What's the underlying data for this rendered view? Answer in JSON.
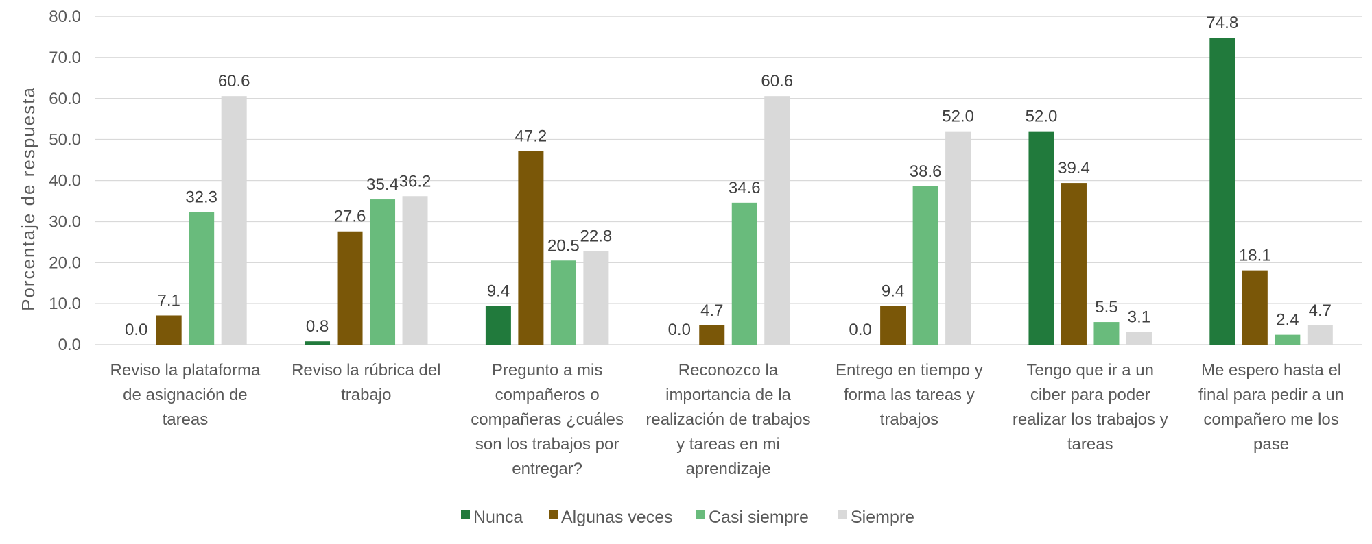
{
  "chart_data": {
    "type": "bar",
    "title": "",
    "xlabel": "",
    "ylabel": "Porcentaje de respuesta",
    "ylim": [
      0,
      80
    ],
    "yticks": [
      "0.0",
      "10.0",
      "20.0",
      "30.0",
      "40.0",
      "50.0",
      "60.0",
      "70.0",
      "80.0"
    ],
    "grid": true,
    "legend_position": "bottom",
    "categories": [
      [
        "Reviso la plataforma",
        "de asignación de",
        "tareas"
      ],
      [
        "Reviso la rúbrica del",
        "trabajo"
      ],
      [
        "Pregunto a mis",
        "compañeros o",
        "compañeras ¿cuáles",
        "son los trabajos por",
        "entregar?"
      ],
      [
        "Reconozco la",
        "importancia de la",
        "realización de trabajos",
        "y tareas en mi",
        "aprendizaje"
      ],
      [
        "Entrego en tiempo y",
        "forma las tareas y",
        "trabajos"
      ],
      [
        "Tengo que ir a un",
        "ciber para poder",
        "realizar los trabajos y",
        "tareas"
      ],
      [
        "Me espero hasta el",
        "final para pedir a un",
        "compañero me los",
        "pase"
      ]
    ],
    "series": [
      {
        "name": "Nunca",
        "color": "#217a3c",
        "values": [
          0.0,
          0.8,
          9.4,
          0.0,
          0.0,
          52.0,
          74.8
        ],
        "labels": [
          "0.0",
          "0.8",
          "9.4",
          "0.0",
          "0.0",
          "52.0",
          "74.8"
        ]
      },
      {
        "name": "Algunas veces",
        "color": "#7a5708",
        "values": [
          7.1,
          27.6,
          47.2,
          4.7,
          9.4,
          39.4,
          18.1
        ],
        "labels": [
          "7.1",
          "27.6",
          "47.2",
          "4.7",
          "9.4",
          "39.4",
          "18.1"
        ]
      },
      {
        "name": "Casi siempre",
        "color": "#69bb7c",
        "values": [
          32.3,
          35.4,
          20.5,
          34.6,
          38.6,
          5.5,
          2.4
        ],
        "labels": [
          "32.3",
          "35.4",
          "20.5",
          "34.6",
          "38.6",
          "5.5",
          "2.4"
        ]
      },
      {
        "name": "Siempre",
        "color": "#d9d9d9",
        "values": [
          60.6,
          36.2,
          22.8,
          60.6,
          52.0,
          3.1,
          4.7
        ],
        "labels": [
          "60.6",
          "36.2",
          "22.8",
          "60.6",
          "52.0",
          "3.1",
          "4.7"
        ]
      }
    ]
  }
}
